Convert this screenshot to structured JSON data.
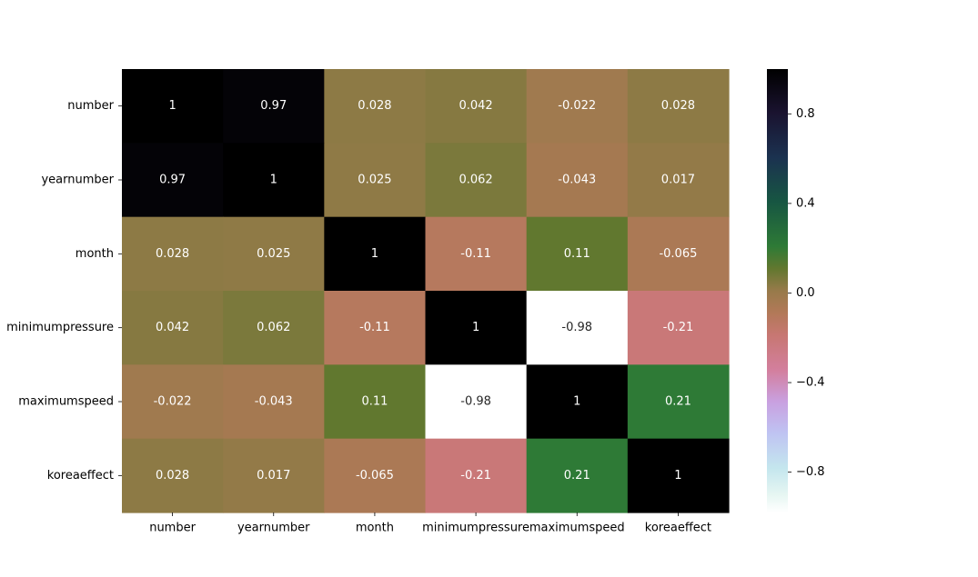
{
  "chart_data": {
    "type": "heatmap",
    "title": "",
    "xlabel": "",
    "ylabel": "",
    "rows": [
      "number",
      "yearnumber",
      "month",
      "minimumpressure",
      "maximumspeed",
      "koreaeffect"
    ],
    "columns": [
      "number",
      "yearnumber",
      "month",
      "minimumpressure",
      "maximumspeed",
      "koreaeffect"
    ],
    "values": [
      [
        1,
        0.97,
        0.028,
        0.042,
        -0.022,
        0.028
      ],
      [
        0.97,
        1,
        0.025,
        0.062,
        -0.043,
        0.017
      ],
      [
        0.028,
        0.025,
        1,
        -0.11,
        0.11,
        -0.065
      ],
      [
        0.042,
        0.062,
        -0.11,
        1,
        -0.98,
        -0.21
      ],
      [
        -0.022,
        -0.043,
        0.11,
        -0.98,
        1,
        0.21
      ],
      [
        0.028,
        0.017,
        -0.065,
        -0.21,
        0.21,
        1
      ]
    ],
    "annotations": [
      [
        "1",
        "0.97",
        "0.028",
        "0.042",
        "-0.022",
        "0.028"
      ],
      [
        "0.97",
        "1",
        "0.025",
        "0.062",
        "-0.043",
        "0.017"
      ],
      [
        "0.028",
        "0.025",
        "1",
        "-0.11",
        "0.11",
        "-0.065"
      ],
      [
        "0.042",
        "0.062",
        "-0.11",
        "1",
        "-0.98",
        "-0.21"
      ],
      [
        "-0.022",
        "-0.043",
        "0.11",
        "-0.98",
        "1",
        "0.21"
      ],
      [
        "0.028",
        "0.017",
        "-0.065",
        "-0.21",
        "0.21",
        "1"
      ]
    ],
    "colormap": "cubehelix_r",
    "vmin": -0.98,
    "vmax": 1,
    "colorbar": {
      "ticks": [
        0.8,
        0.4,
        0.0,
        -0.4,
        -0.8
      ],
      "tick_labels": [
        "0.8",
        "0.4",
        "0.0",
        "−0.4",
        "−0.8"
      ]
    },
    "grid": false,
    "legend": "colorbar-right"
  }
}
